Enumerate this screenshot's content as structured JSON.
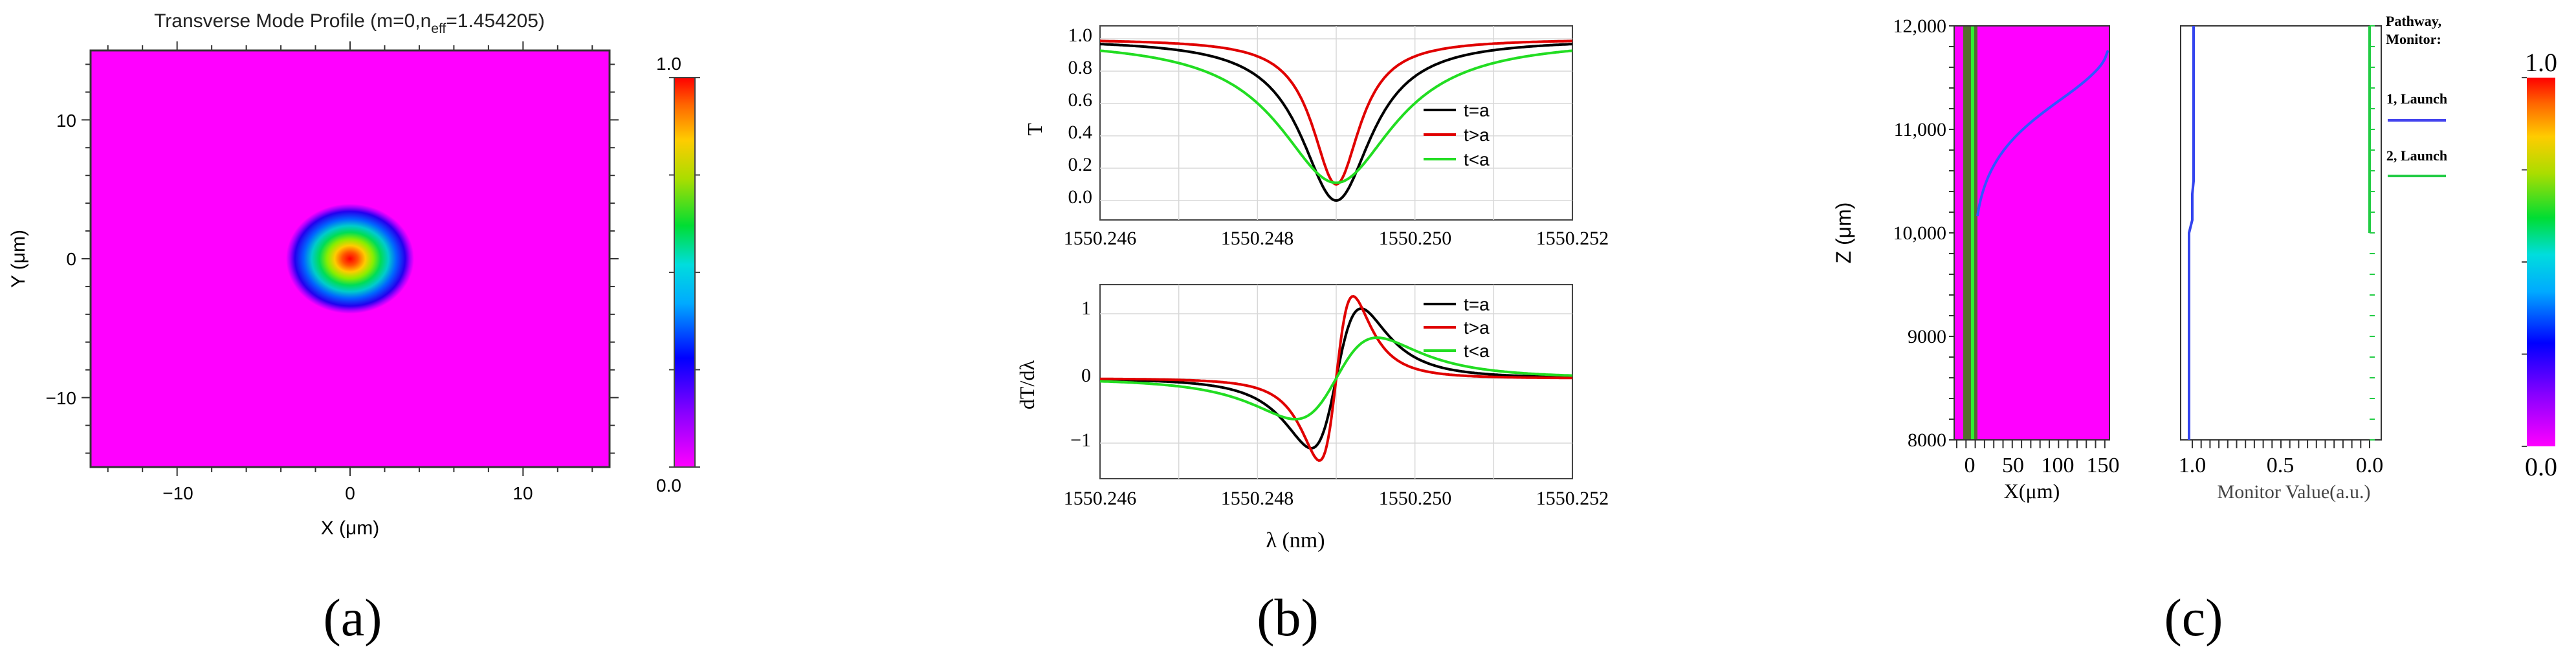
{
  "captions": {
    "a": "(a)",
    "b": "(b)",
    "c": "(c)"
  },
  "chart_data": [
    {
      "type": "heatmap",
      "panel": "a",
      "title_prefix": "Transverse Mode Profile (m=0,n",
      "title_sub": "eff",
      "title_suffix": "=1.454205)",
      "xlabel": "X (μm)",
      "ylabel": "Y (μm)",
      "xlim": [
        -15,
        15
      ],
      "ylim": [
        -15,
        15
      ],
      "xticks": [
        "−10",
        "0",
        "10"
      ],
      "yticks": [
        "10",
        "0",
        "−10"
      ],
      "mode_center": [
        0,
        0
      ],
      "mode_radius_um": 3.5,
      "colorbar": {
        "min_label": "0.0",
        "max_label": "1.0",
        "min": 0.0,
        "max": 1.0
      },
      "colors": {
        "background": "#ff00ff",
        "peak": "#ff0000"
      }
    },
    {
      "type": "line",
      "panel": "b-top",
      "xlabel": "",
      "ylabel": "T",
      "xlim": [
        1550.246,
        1550.252
      ],
      "ylim": [
        -0.12,
        1.08
      ],
      "xticks": [
        "1550.246",
        "1550.248",
        "1550.250",
        "1550.252"
      ],
      "yticks": [
        "1.0",
        "0.8",
        "0.6",
        "0.4",
        "0.2",
        "0.0"
      ],
      "resonance": 1550.249,
      "series": [
        {
          "name": "t=a",
          "color": "#000000",
          "min": 0.0,
          "width": 0.00055
        },
        {
          "name": "t>a",
          "color": "#e00000",
          "min": 0.1,
          "width": 0.00037
        },
        {
          "name": "t<a",
          "color": "#22dd22",
          "min": 0.11,
          "width": 0.0009
        }
      ]
    },
    {
      "type": "line",
      "panel": "b-bottom",
      "xlabel": "λ (nm)",
      "ylabel": "dT/dλ",
      "xlim": [
        1550.246,
        1550.252
      ],
      "ylim": [
        -1.55,
        1.45
      ],
      "xticks": [
        "1550.246",
        "1550.248",
        "1550.250",
        "1550.252"
      ],
      "yticks": [
        "1",
        "0",
        "−1"
      ],
      "series": [
        {
          "name": "t=a",
          "color": "#000000",
          "peak": 1.08
        },
        {
          "name": "t>a",
          "color": "#e00000",
          "peak": 1.27
        },
        {
          "name": "t<a",
          "color": "#22dd22",
          "peak": 0.63
        }
      ]
    },
    {
      "type": "heatmap",
      "panel": "c-left",
      "xlabel": "X(μm)",
      "ylabel": "Z (μm)",
      "xlim": [
        -15,
        150
      ],
      "ylim": [
        8000,
        12000
      ],
      "xticks": [
        "0",
        "50",
        "100",
        "150"
      ],
      "yticks": [
        "12,000",
        "11,000",
        "10,000",
        "9000",
        "8000"
      ],
      "colorbar": {
        "min_label": "0.0",
        "max_label": "1.0",
        "min": 0.0,
        "max": 1.0
      }
    },
    {
      "type": "line",
      "panel": "c-right",
      "xlabel": "Monitor Value(a.u.)",
      "xticks": [
        "1.0",
        "0.5",
        "0.0"
      ],
      "legend_title": "Pathway,\nMonitor:",
      "series": [
        {
          "name": "1,  Launch",
          "color": "#4444ee"
        },
        {
          "name": "2,  Launch",
          "color": "#22cc44"
        }
      ]
    }
  ]
}
